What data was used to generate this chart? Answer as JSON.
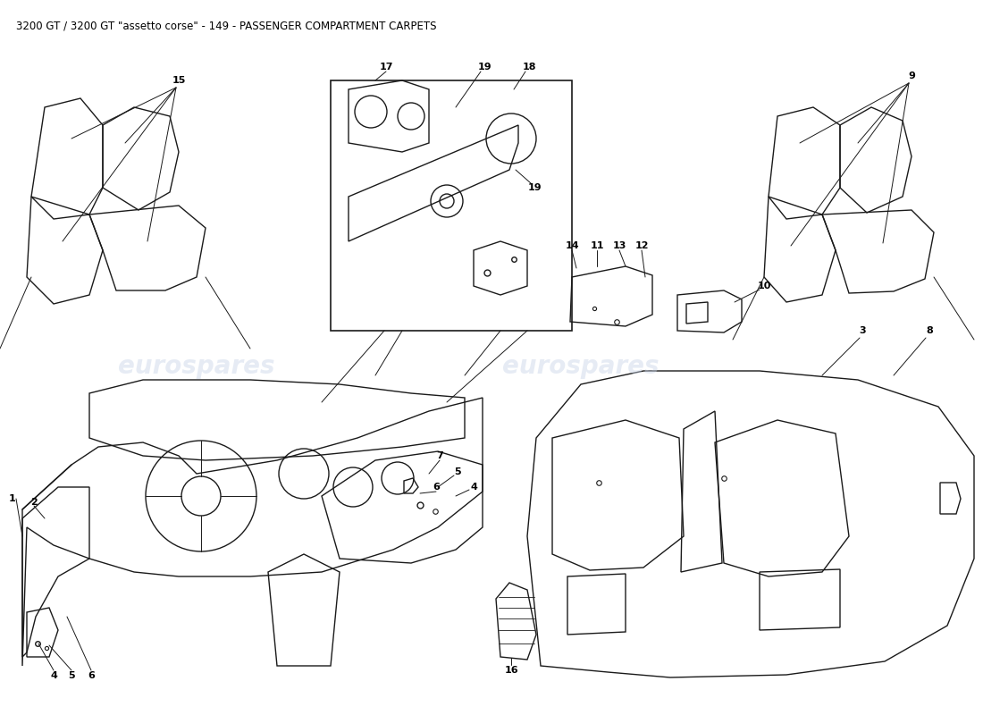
{
  "title": "3200 GT / 3200 GT \"assetto corse\" - 149 - PASSENGER COMPARTMENT CARPETS",
  "title_fontsize": 8.5,
  "background_color": "#ffffff",
  "watermark_text": "eurospares",
  "watermark_color": "#c8d4e8",
  "watermark_alpha": 0.45,
  "fig_width": 11.0,
  "fig_height": 8.0,
  "dpi": 100,
  "label_fontsize": 8,
  "label_fontweight": "bold",
  "line_color": "#1a1a1a",
  "lw_main": 1.0,
  "lw_thin": 0.7
}
